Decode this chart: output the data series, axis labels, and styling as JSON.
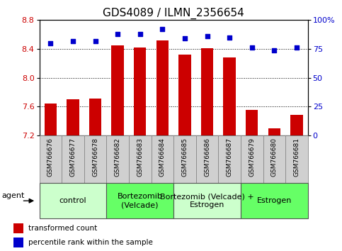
{
  "title": "GDS4089 / ILMN_2356654",
  "samples": [
    "GSM766676",
    "GSM766677",
    "GSM766678",
    "GSM766682",
    "GSM766683",
    "GSM766684",
    "GSM766685",
    "GSM766686",
    "GSM766687",
    "GSM766679",
    "GSM766680",
    "GSM766681"
  ],
  "transformed_count": [
    7.64,
    7.7,
    7.71,
    8.45,
    8.42,
    8.52,
    8.32,
    8.41,
    8.28,
    7.56,
    7.3,
    7.49
  ],
  "percentile_rank": [
    80,
    82,
    82,
    88,
    88,
    92,
    84,
    86,
    85,
    76,
    74,
    76
  ],
  "ylim_left": [
    7.2,
    8.8
  ],
  "ylim_right": [
    0,
    100
  ],
  "yticks_left": [
    7.2,
    7.6,
    8.0,
    8.4,
    8.8
  ],
  "yticks_right": [
    0,
    25,
    50,
    75,
    100
  ],
  "bar_color": "#cc0000",
  "dot_color": "#0000cc",
  "groups": [
    {
      "label": "control",
      "start": 0,
      "end": 3,
      "color": "#ccffcc"
    },
    {
      "label": "Bortezomib\n(Velcade)",
      "start": 3,
      "end": 6,
      "color": "#66ff66"
    },
    {
      "label": "Bortezomib (Velcade) +\nEstrogen",
      "start": 6,
      "end": 9,
      "color": "#ccffcc"
    },
    {
      "label": "Estrogen",
      "start": 9,
      "end": 12,
      "color": "#66ff66"
    }
  ],
  "agent_label": "agent",
  "legend_bar_label": "transformed count",
  "legend_dot_label": "percentile rank within the sample",
  "background_color": "#ffffff",
  "plot_bg_color": "#ffffff",
  "tick_label_color_left": "#cc0000",
  "tick_label_color_right": "#0000cc",
  "title_fontsize": 11,
  "tick_fontsize": 8,
  "group_label_fontsize": 8,
  "sample_box_color": "#d0d0d0"
}
